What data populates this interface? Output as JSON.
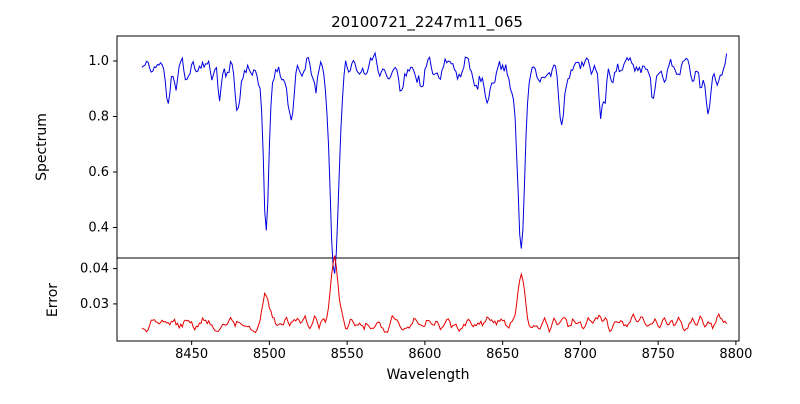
{
  "figure": {
    "background": "#ffffff"
  },
  "chart_data": {
    "type": "line",
    "title": "20100721_2247m11_065",
    "xlabel": "Wavelength",
    "legend": "none",
    "grid": false,
    "xlim": [
      8402,
      8802
    ],
    "x_range": [
      8418,
      8794
    ],
    "sample_step": 1,
    "seed": 11,
    "xticks": {
      "values": [
        8450,
        8500,
        8550,
        8600,
        8650,
        8700,
        8750,
        8800
      ],
      "labels": [
        "8450",
        "8500",
        "8550",
        "8600",
        "8650",
        "8700",
        "8750",
        "8800"
      ]
    },
    "panels": [
      {
        "ylabel": "Spectrum",
        "color": "#0000e0",
        "ylim": [
          0.29,
          1.09
        ],
        "yticks": {
          "values": [
            0.4,
            0.6,
            0.8,
            1.0
          ],
          "labels": [
            "0.4",
            "0.6",
            "0.8",
            "1.0"
          ]
        },
        "continuum": 0.975,
        "noise_scale": 0.13,
        "micro_dip_rate": 0.05,
        "micro_dip_max": 0.1,
        "clip_max": 1.04,
        "absorption_lines": [
          {
            "center": 8435,
            "depth": 0.1,
            "sigma": 1.2
          },
          {
            "center": 8468,
            "depth": 0.11,
            "sigma": 1.0
          },
          {
            "center": 8498,
            "depth": 0.46,
            "sigma": 1.8
          },
          {
            "center": 8515,
            "depth": 0.17,
            "sigma": 1.4
          },
          {
            "center": 8542,
            "depth": 0.66,
            "sigma": 2.6
          },
          {
            "center": 8585,
            "depth": 0.1,
            "sigma": 1.3
          },
          {
            "center": 8598,
            "depth": 0.08,
            "sigma": 1.0
          },
          {
            "center": 8662,
            "depth": 0.67,
            "sigma": 2.2
          },
          {
            "center": 8688,
            "depth": 0.23,
            "sigma": 1.7
          },
          {
            "center": 8747,
            "depth": 0.1,
            "sigma": 1.2
          }
        ]
      },
      {
        "ylabel": "Error",
        "color": "#e60000",
        "ylim": [
          0.0195,
          0.043
        ],
        "yticks": {
          "values": [
            0.03,
            0.04
          ],
          "labels": [
            "0.03",
            "0.04"
          ]
        },
        "baseline": 0.0245,
        "noise_scale": 0.006,
        "peaks": [
          {
            "center": 8498,
            "height": 0.0062,
            "sigma": 2.2
          },
          {
            "center": 8515,
            "height": 0.002,
            "sigma": 1.5
          },
          {
            "center": 8542,
            "height": 0.017,
            "sigma": 2.4
          },
          {
            "center": 8662,
            "height": 0.0138,
            "sigma": 2.0
          },
          {
            "center": 8688,
            "height": 0.002,
            "sigma": 1.5
          }
        ]
      }
    ]
  }
}
